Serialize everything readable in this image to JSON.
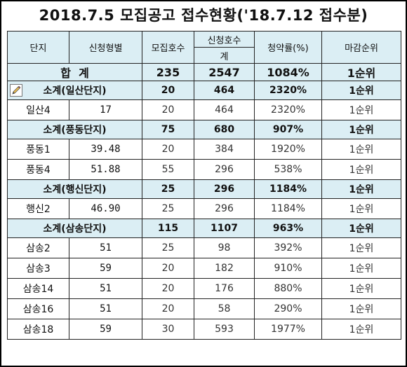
{
  "title": "2018.7.5 모집공고 접수현황('18.7.12 접수분)",
  "headers": {
    "danji": "단지",
    "type": "신청형별",
    "recruit": "모집호수",
    "apply_group": "신청호수",
    "apply_sum": "계",
    "rate": "청약률(%)",
    "rank": "마감순위"
  },
  "total": {
    "label": "합  계",
    "recruit": "235",
    "apply": "2547",
    "rate": "1084%",
    "rank": "1순위"
  },
  "groups": [
    {
      "subtotal": {
        "label": "소계(일산단지)",
        "recruit": "20",
        "apply": "464",
        "rate": "2320%",
        "rank": "1순위"
      },
      "rows": [
        {
          "danji": "일산4",
          "type": "17",
          "recruit": "20",
          "apply": "464",
          "rate": "2320%",
          "rank": "1순위"
        }
      ]
    },
    {
      "subtotal": {
        "label": "소계(풍동단지)",
        "recruit": "75",
        "apply": "680",
        "rate": "907%",
        "rank": "1순위"
      },
      "rows": [
        {
          "danji": "풍동1",
          "type": "39.48",
          "recruit": "20",
          "apply": "384",
          "rate": "1920%",
          "rank": "1순위"
        },
        {
          "danji": "풍동4",
          "type": "51.88",
          "recruit": "55",
          "apply": "296",
          "rate": "538%",
          "rank": "1순위"
        }
      ]
    },
    {
      "subtotal": {
        "label": "소계(행신단지)",
        "recruit": "25",
        "apply": "296",
        "rate": "1184%",
        "rank": "1순위"
      },
      "rows": [
        {
          "danji": "행신2",
          "type": "46.90",
          "recruit": "25",
          "apply": "296",
          "rate": "1184%",
          "rank": "1순위"
        }
      ]
    },
    {
      "subtotal": {
        "label": "소계(삼송단지)",
        "recruit": "115",
        "apply": "1107",
        "rate": "963%",
        "rank": "1순위"
      },
      "rows": [
        {
          "danji": "삼송2",
          "type": "51",
          "recruit": "25",
          "apply": "98",
          "rate": "392%",
          "rank": "1순위"
        },
        {
          "danji": "삼송3",
          "type": "59",
          "recruit": "20",
          "apply": "182",
          "rate": "910%",
          "rank": "1순위"
        },
        {
          "danji": "삼송14",
          "type": "51",
          "recruit": "20",
          "apply": "176",
          "rate": "880%",
          "rank": "1순위"
        },
        {
          "danji": "삼송16",
          "type": "51",
          "recruit": "20",
          "apply": "58",
          "rate": "290%",
          "rank": "1순위"
        },
        {
          "danji": "삼송18",
          "type": "59",
          "recruit": "30",
          "apply": "593",
          "rate": "1977%",
          "rank": "1순위"
        }
      ]
    }
  ]
}
